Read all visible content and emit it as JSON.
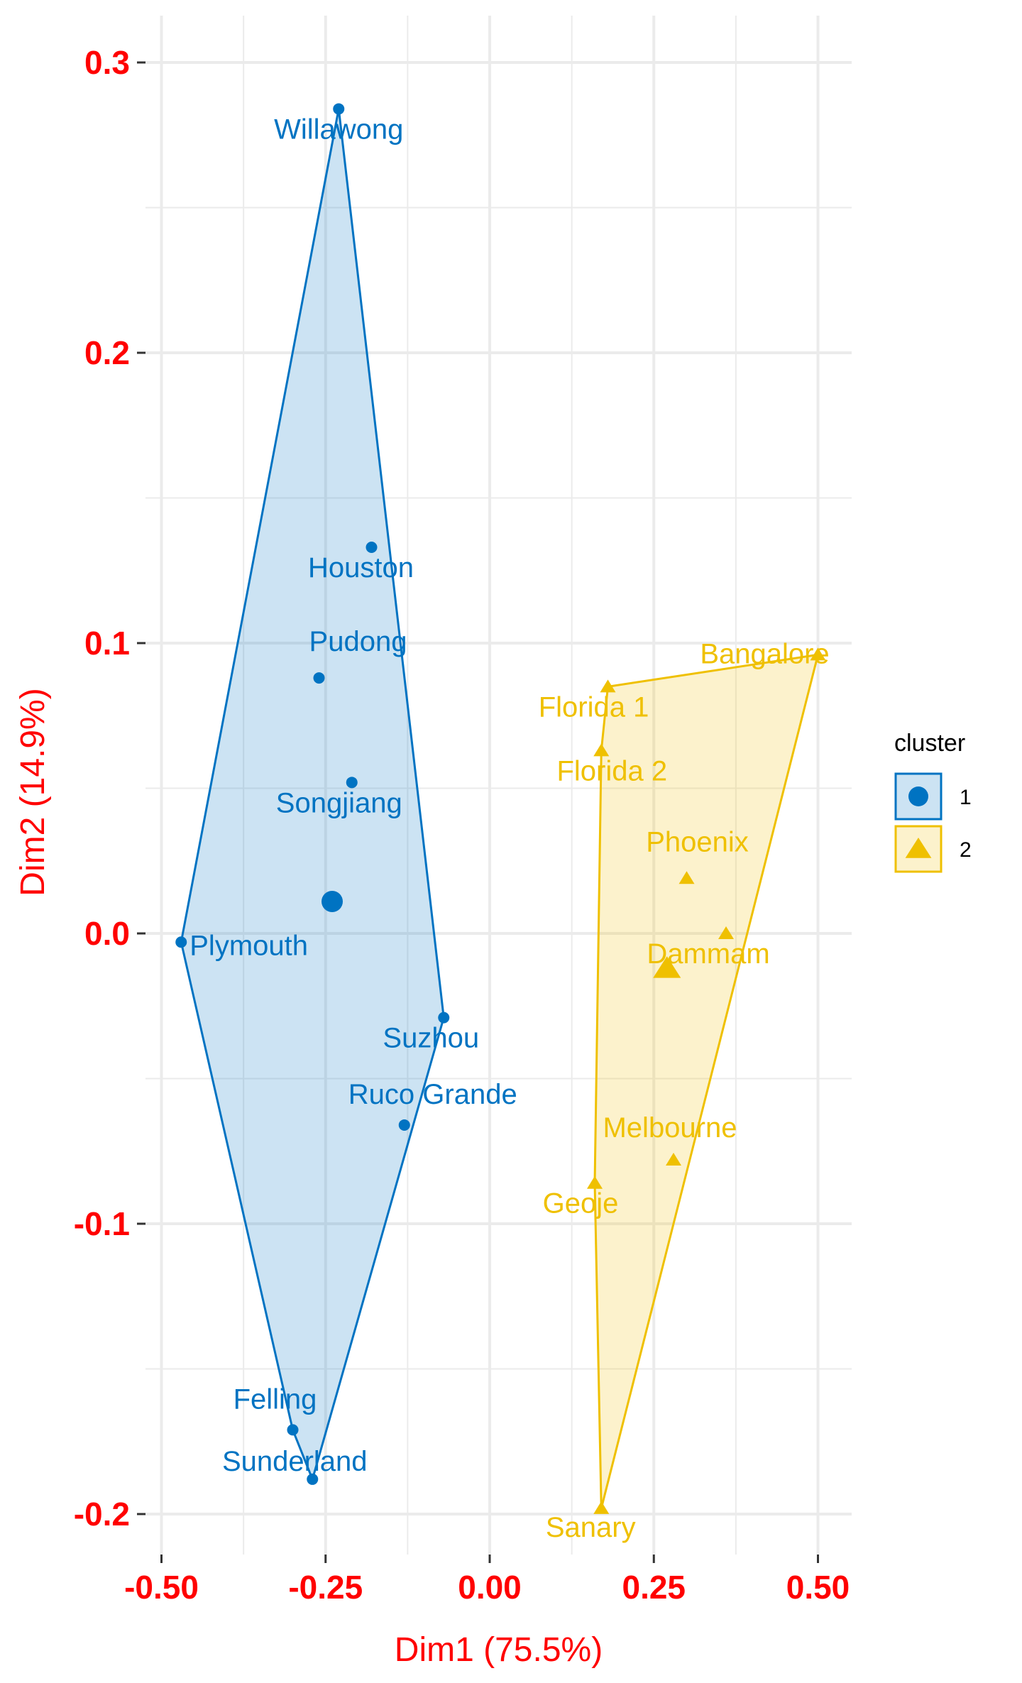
{
  "chart_data": {
    "type": "scatter",
    "title": "",
    "xlabel": "Dim1 (75.5%)",
    "ylabel": "Dim2 (14.9%)",
    "xlim": [
      -0.5,
      0.5
    ],
    "ylim": [
      -0.2,
      0.3
    ],
    "x_ticks": [
      -0.5,
      -0.25,
      0.0,
      0.25,
      0.5
    ],
    "x_tick_labels": [
      "-0.50",
      "-0.25",
      "0.00",
      "0.25",
      "0.50"
    ],
    "y_ticks": [
      -0.2,
      -0.1,
      0.0,
      0.1,
      0.2,
      0.3
    ],
    "y_tick_labels": [
      "-0.2",
      "-0.1",
      "0.0",
      "0.1",
      "0.2",
      "0.3"
    ],
    "grid": true,
    "legend_position": "right",
    "legend_title": "cluster",
    "colors": {
      "tick_labels": "#ff0000",
      "axis_titles": "#ff0000",
      "grid": "#ebebeb"
    },
    "series": [
      {
        "name": "1",
        "color": "#0073c2",
        "marker": "circle",
        "center": [
          -0.24,
          0.011
        ],
        "points": [
          {
            "label": "Willawong",
            "x": -0.23,
            "y": 0.284
          },
          {
            "label": "Houston",
            "x": -0.18,
            "y": 0.133
          },
          {
            "label": "Pudong",
            "x": -0.26,
            "y": 0.088
          },
          {
            "label": "Songjiang",
            "x": -0.21,
            "y": 0.052
          },
          {
            "label": "Plymouth",
            "x": -0.47,
            "y": -0.003
          },
          {
            "label": "Suzhou",
            "x": -0.07,
            "y": -0.029
          },
          {
            "label": "Ruco Grande",
            "x": -0.13,
            "y": -0.066
          },
          {
            "label": "Felling",
            "x": -0.3,
            "y": -0.171
          },
          {
            "label": "Sunderland",
            "x": -0.27,
            "y": -0.188
          }
        ]
      },
      {
        "name": "2",
        "color": "#efc000",
        "marker": "triangle",
        "center": [
          0.27,
          -0.012
        ],
        "points": [
          {
            "label": "Bangalore",
            "x": 0.5,
            "y": 0.096
          },
          {
            "label": "Florida 1",
            "x": 0.18,
            "y": 0.085
          },
          {
            "label": "Florida 2",
            "x": 0.17,
            "y": 0.063
          },
          {
            "label": "Phoenix",
            "x": 0.3,
            "y": 0.019
          },
          {
            "label": "Dammam",
            "x": 0.36,
            "y": 0.0
          },
          {
            "label": "Melbourne",
            "x": 0.28,
            "y": -0.078
          },
          {
            "label": "Geoje",
            "x": 0.16,
            "y": -0.086
          },
          {
            "label": "Sanary",
            "x": 0.17,
            "y": -0.198
          }
        ]
      }
    ]
  }
}
